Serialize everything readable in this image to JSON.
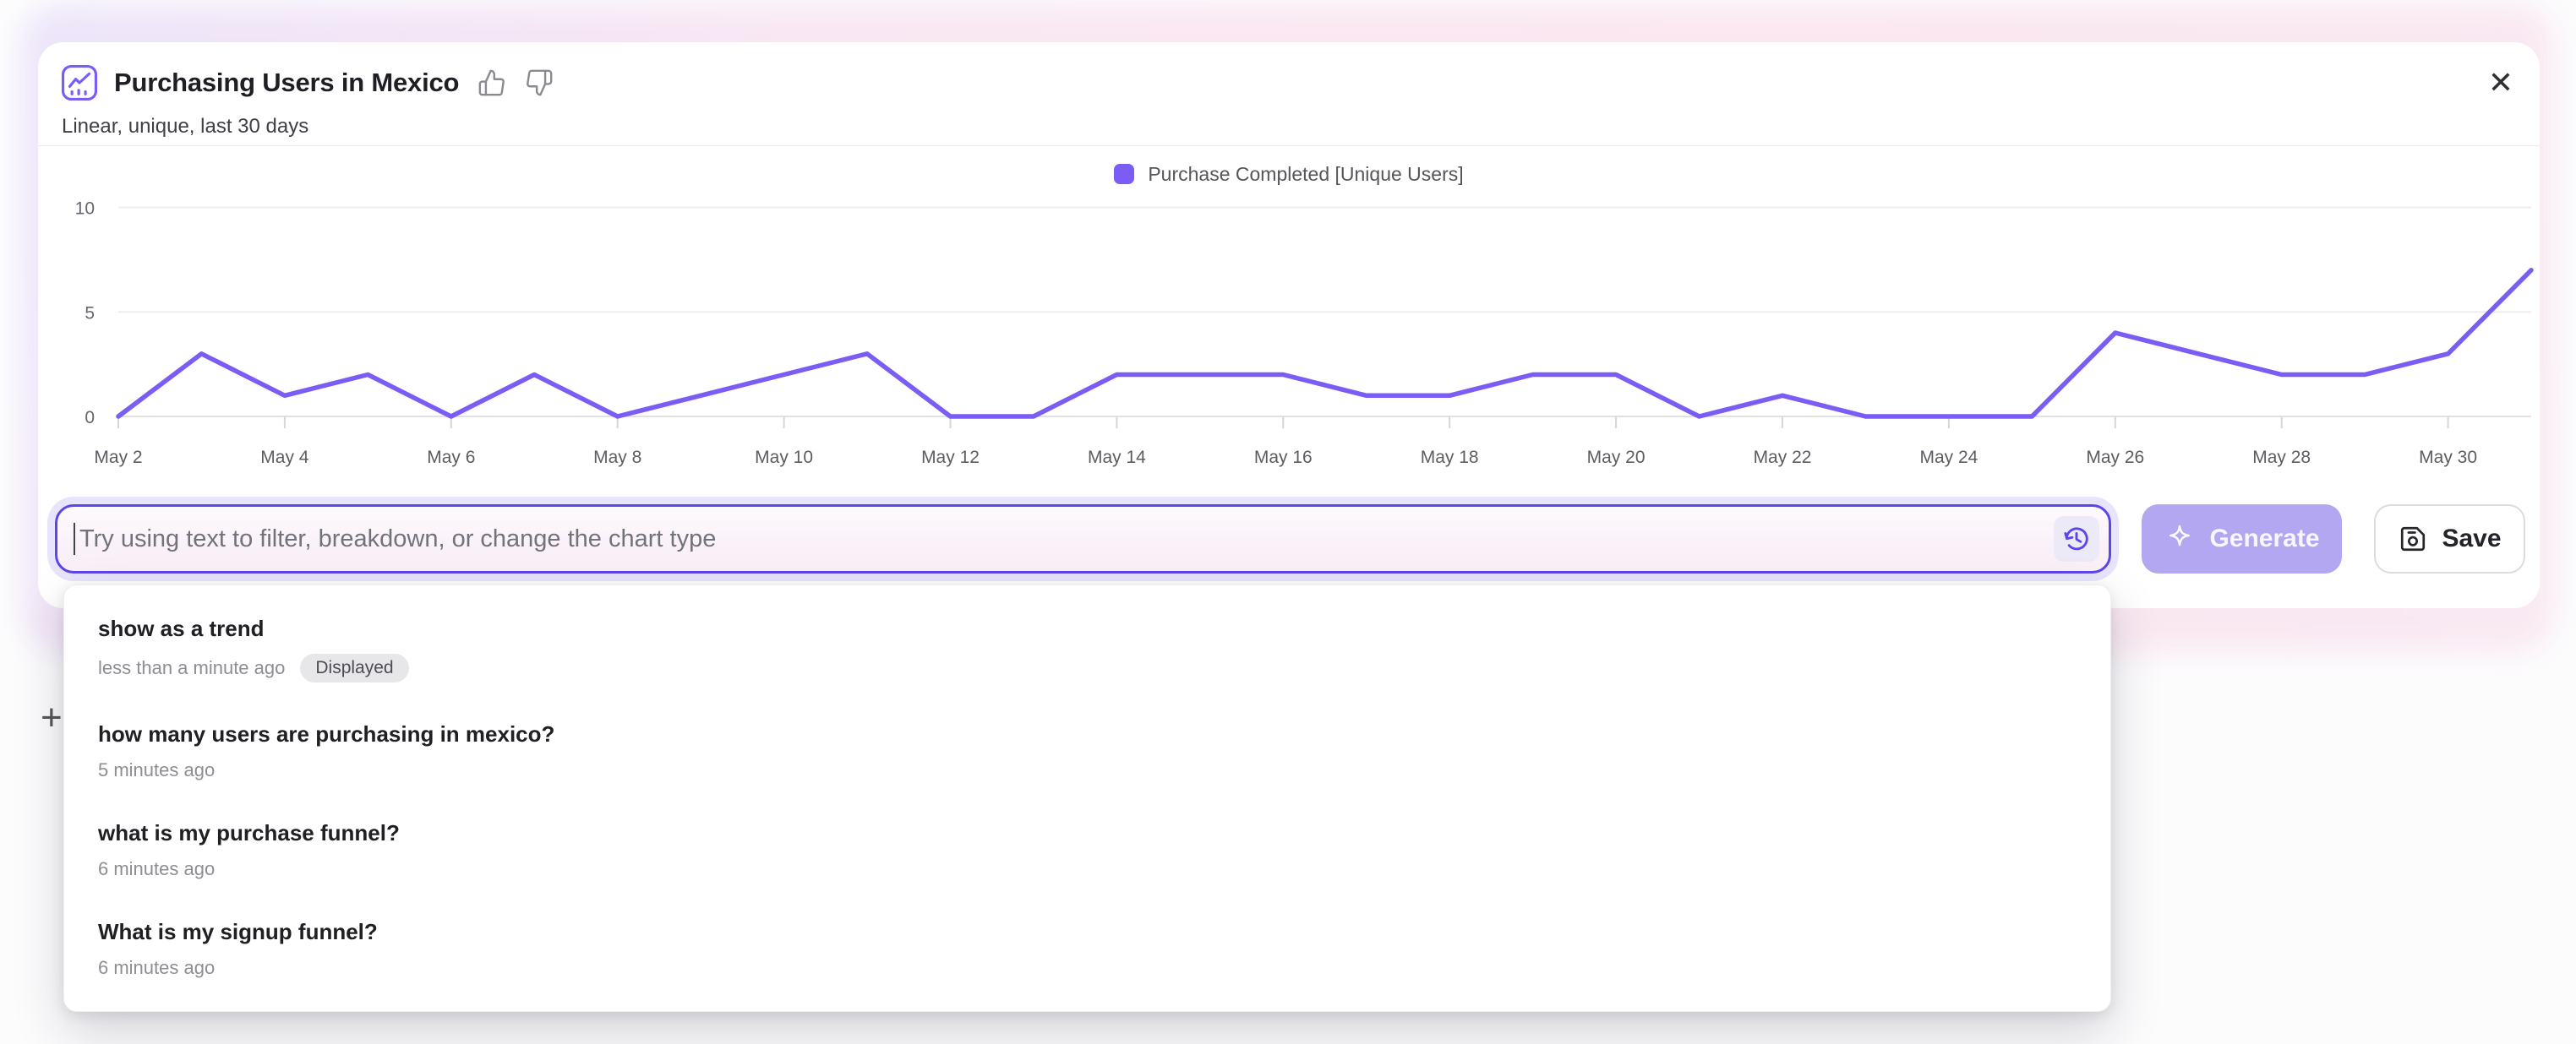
{
  "header": {
    "title": "Purchasing Users in Mexico",
    "subtitle": "Linear, unique, last 30 days",
    "close_glyph": "✕",
    "icons": {
      "title_icon": "line-chart-icon",
      "feedback_up": "thumbs-up-icon",
      "feedback_down": "thumbs-down-icon",
      "close": "close-icon"
    }
  },
  "legend": {
    "label": "Purchase Completed [Unique Users]",
    "color": "#7b5cf5"
  },
  "chart_data": {
    "type": "line",
    "title": "Purchasing Users in Mexico",
    "x": [
      "May 2",
      "May 3",
      "May 4",
      "May 5",
      "May 6",
      "May 7",
      "May 8",
      "May 9",
      "May 10",
      "May 11",
      "May 12",
      "May 13",
      "May 14",
      "May 15",
      "May 16",
      "May 17",
      "May 18",
      "May 19",
      "May 20",
      "May 21",
      "May 22",
      "May 23",
      "May 24",
      "May 25",
      "May 26",
      "May 27",
      "May 28",
      "May 29",
      "May 30",
      "May 31"
    ],
    "series": [
      {
        "name": "Purchase Completed [Unique Users]",
        "color": "#7b5cf5",
        "values": [
          0,
          3,
          1,
          2,
          0,
          2,
          0,
          1,
          2,
          3,
          0,
          0,
          2,
          2,
          2,
          1,
          1,
          2,
          2,
          0,
          1,
          0,
          0,
          0,
          4,
          3,
          2,
          2,
          3,
          7
        ]
      }
    ],
    "xlabel": "",
    "ylabel": "",
    "y_ticks": [
      0,
      5,
      10
    ],
    "ylim": [
      0,
      10
    ],
    "x_tick_every": 2,
    "grid": "horizontal",
    "legend_position": "top-center"
  },
  "composer": {
    "placeholder": "Try using text to filter, breakdown, or change the chart type",
    "value": "",
    "history_icon": "history-icon",
    "generate": {
      "label": "Generate",
      "icon": "sparkle-icon",
      "enabled": false,
      "color": "#b3a7f1"
    },
    "save": {
      "label": "Save",
      "icon": "save-icon"
    }
  },
  "history": {
    "items": [
      {
        "label": "show as a trend",
        "time": "less than a minute ago",
        "badge": "Displayed"
      },
      {
        "label": "how many users are purchasing in mexico?",
        "time": "5 minutes ago"
      },
      {
        "label": "what is my purchase funnel?",
        "time": "6 minutes ago"
      },
      {
        "label": "What is my signup funnel?",
        "time": "6 minutes ago"
      }
    ]
  },
  "background": {
    "plus_glyph": "+"
  },
  "colors": {
    "accent_purple": "#7b5cf5",
    "input_border": "#5b46ec",
    "generate_bg": "#b3a7f1",
    "glow_pink": "#fbe7f0",
    "badge_bg": "#e7e7ea",
    "divider": "#ececef"
  }
}
